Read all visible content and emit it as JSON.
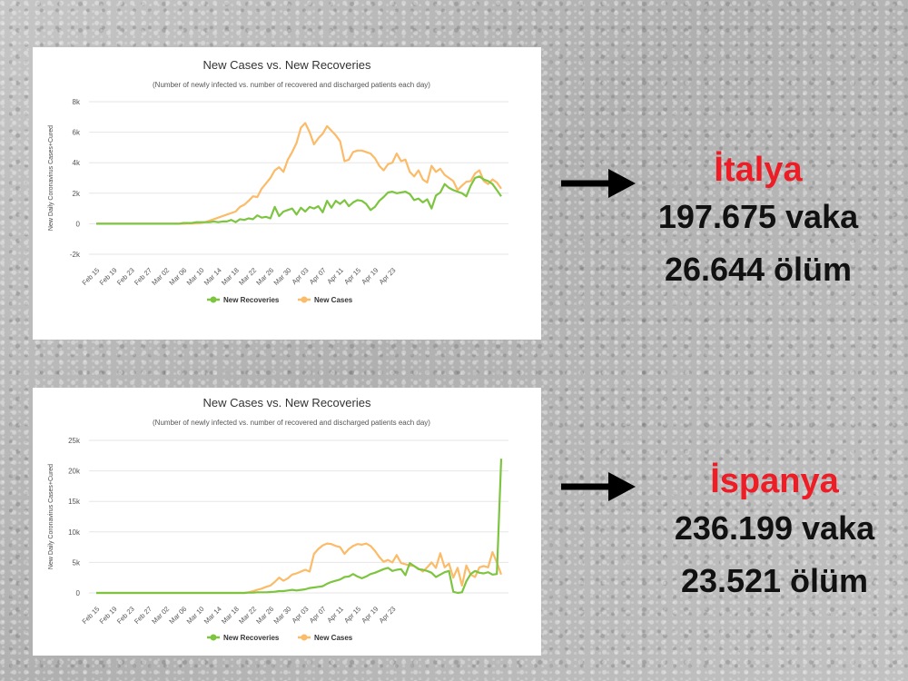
{
  "chart_data": [
    {
      "type": "line",
      "title": "New Cases vs. New Recoveries",
      "subtitle": "(Number of newly infected vs. number of recovered and discharged patients each day)",
      "ylabel": "New Daily Coronavirus Cases+Cured",
      "xlabel": "",
      "ylim": [
        -2000,
        8000
      ],
      "yticks": [
        -2000,
        0,
        2000,
        4000,
        6000,
        8000
      ],
      "ytick_labels": [
        "-2k",
        "0",
        "2k",
        "4k",
        "6k",
        "8k"
      ],
      "xtick_labels": [
        "Feb 15",
        "Feb 19",
        "Feb 23",
        "Feb 27",
        "Mar 02",
        "Mar 06",
        "Mar 10",
        "Mar 14",
        "Mar 18",
        "Mar 22",
        "Mar 26",
        "Mar 30",
        "Apr 03",
        "Apr 07",
        "Apr 11",
        "Apr 15",
        "Apr 19",
        "Apr 23"
      ],
      "grid": true,
      "legend": "bottom",
      "series": [
        {
          "name": "New Recoveries",
          "color": "#7dc540",
          "values": [
            0,
            0,
            0,
            0,
            0,
            0,
            0,
            0,
            0,
            0,
            0,
            0,
            0,
            0,
            0,
            0,
            0,
            0,
            0,
            0,
            50,
            50,
            50,
            100,
            100,
            100,
            100,
            150,
            100,
            150,
            150,
            250,
            100,
            300,
            250,
            350,
            300,
            550,
            400,
            450,
            350,
            1100,
            500,
            800,
            900,
            1000,
            600,
            1050,
            800,
            1100,
            1000,
            1150,
            750,
            1500,
            1050,
            1500,
            1300,
            1550,
            1150,
            1400,
            1550,
            1500,
            1300,
            900,
            1100,
            1500,
            1750,
            2050,
            2100,
            2000,
            2050,
            2100,
            1950,
            1550,
            1650,
            1400,
            1600,
            1000,
            1850,
            2050,
            2600,
            2350,
            2200,
            2100,
            2000,
            1800,
            2500,
            3000,
            3100,
            2900,
            2800,
            2600,
            2200,
            1800
          ]
        },
        {
          "name": "New Cases",
          "color": "#fbbb68",
          "values": [
            0,
            0,
            0,
            0,
            0,
            0,
            0,
            0,
            0,
            0,
            0,
            0,
            0,
            0,
            0,
            0,
            0,
            0,
            0,
            0,
            0,
            10,
            20,
            30,
            50,
            100,
            200,
            300,
            400,
            500,
            600,
            700,
            800,
            1100,
            1250,
            1500,
            1800,
            1750,
            2300,
            2650,
            3000,
            3500,
            3700,
            3400,
            4200,
            4700,
            5300,
            6300,
            6600,
            6000,
            5200,
            5600,
            5900,
            6400,
            6100,
            5800,
            5400,
            4100,
            4200,
            4700,
            4800,
            4800,
            4700,
            4600,
            4300,
            3800,
            3500,
            3900,
            4000,
            4600,
            4100,
            4200,
            3400,
            3100,
            3500,
            2900,
            2700,
            3800,
            3400,
            3600,
            3200,
            3000,
            2800,
            2200,
            2500,
            2750,
            2800,
            3300,
            3500,
            2800,
            2600,
            2900,
            2700,
            2300
          ]
        }
      ]
    },
    {
      "type": "line",
      "title": "New Cases vs. New Recoveries",
      "subtitle": "(Number of newly infected vs. number of recovered and discharged patients each day)",
      "ylabel": "New Daily Coronavirus Cases+Cured",
      "xlabel": "",
      "ylim": [
        0,
        25000
      ],
      "yticks": [
        0,
        5000,
        10000,
        15000,
        20000,
        25000
      ],
      "ytick_labels": [
        "0",
        "5k",
        "10k",
        "15k",
        "20k",
        "25k"
      ],
      "xtick_labels": [
        "Feb 15",
        "Feb 19",
        "Feb 23",
        "Feb 27",
        "Mar 02",
        "Mar 06",
        "Mar 10",
        "Mar 14",
        "Mar 18",
        "Mar 22",
        "Mar 26",
        "Mar 30",
        "Apr 03",
        "Apr 07",
        "Apr 11",
        "Apr 15",
        "Apr 19",
        "Apr 23"
      ],
      "grid": true,
      "legend": "bottom",
      "series": [
        {
          "name": "New Recoveries",
          "color": "#7dc540",
          "values": [
            0,
            0,
            0,
            0,
            0,
            0,
            0,
            0,
            0,
            0,
            0,
            0,
            0,
            0,
            0,
            0,
            0,
            0,
            0,
            0,
            0,
            0,
            0,
            0,
            0,
            0,
            0,
            0,
            0,
            0,
            0,
            0,
            0,
            0,
            0,
            50,
            50,
            100,
            100,
            100,
            150,
            200,
            300,
            300,
            400,
            500,
            400,
            500,
            600,
            800,
            900,
            1000,
            1100,
            1500,
            1800,
            2000,
            2200,
            2600,
            2700,
            3100,
            2700,
            2400,
            2700,
            3100,
            3300,
            3600,
            3900,
            4100,
            3600,
            3800,
            3900,
            2900,
            4900,
            4400,
            3900,
            3800,
            3600,
            3300,
            2600,
            3000,
            3400,
            3600,
            200,
            0,
            100,
            1900,
            3100,
            3600,
            3300,
            3200,
            3400,
            3000,
            3100,
            22000
          ]
        },
        {
          "name": "New Cases",
          "color": "#fbbb68",
          "values": [
            0,
            0,
            0,
            0,
            0,
            0,
            0,
            0,
            0,
            0,
            0,
            0,
            0,
            0,
            0,
            0,
            0,
            0,
            0,
            0,
            0,
            0,
            0,
            0,
            0,
            0,
            0,
            0,
            0,
            0,
            0,
            0,
            0,
            0,
            0,
            100,
            300,
            500,
            700,
            1000,
            1200,
            1800,
            2500,
            2000,
            2400,
            3000,
            3200,
            3500,
            3800,
            3500,
            6400,
            7200,
            7800,
            8100,
            8000,
            7700,
            7500,
            6400,
            7200,
            7700,
            8000,
            7900,
            8100,
            7700,
            6900,
            5900,
            5100,
            5400,
            5000,
            6200,
            4900,
            4700,
            4500,
            4400,
            4000,
            3500,
            4200,
            5000,
            4100,
            6500,
            4200,
            4800,
            2500,
            4100,
            1200,
            4500,
            3000,
            2600,
            4200,
            4400,
            4200,
            6700,
            5000,
            3000
          ]
        }
      ]
    }
  ],
  "panels": [
    {
      "country": "İtalya",
      "cases": "197.675 vaka",
      "deaths": "26.644 ölüm"
    },
    {
      "country": "İspanya",
      "cases": "236.199 vaka",
      "deaths": "23.521 ölüm"
    }
  ]
}
